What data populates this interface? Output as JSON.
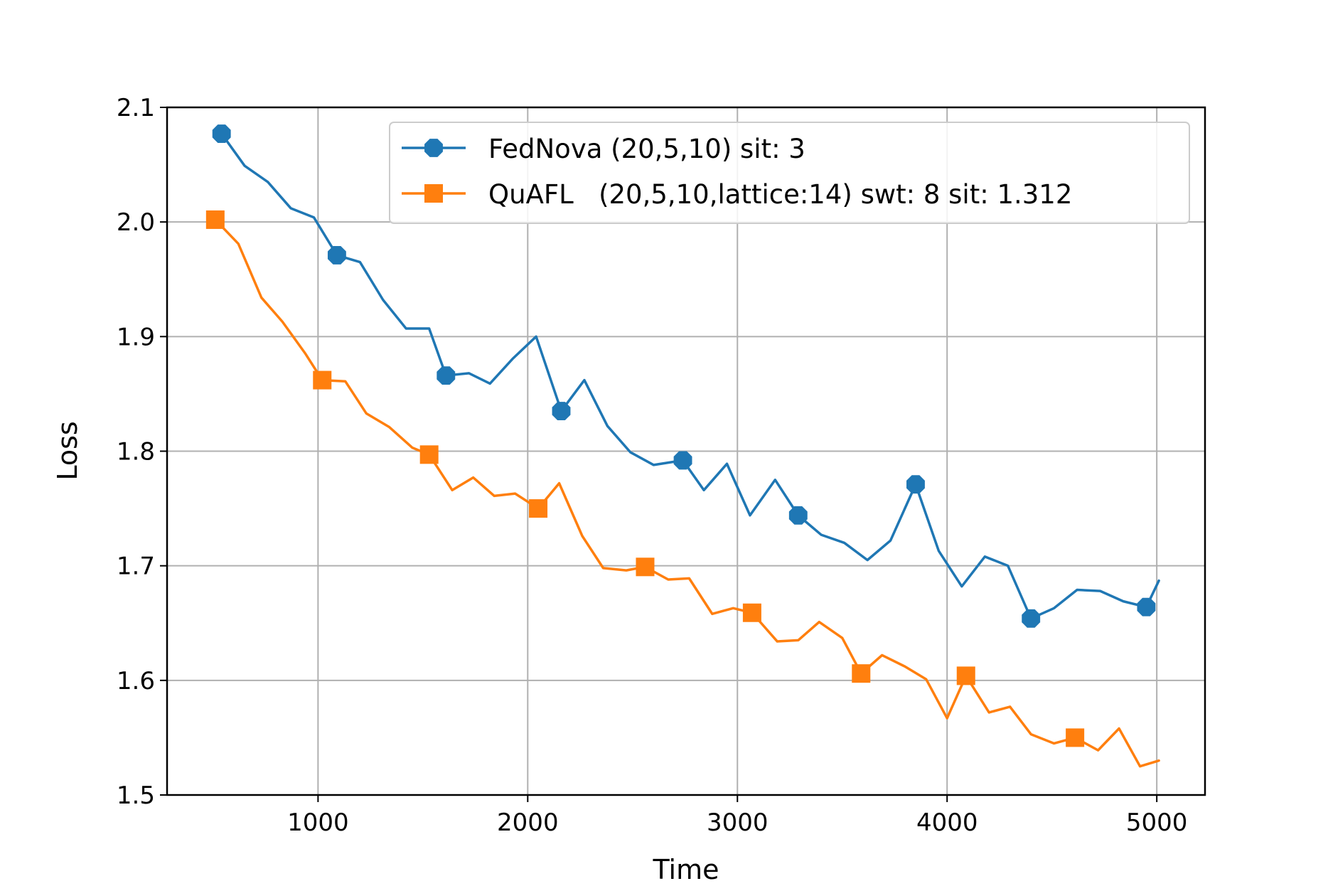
{
  "chart_data": {
    "type": "line",
    "title": "",
    "xlabel": "Time",
    "ylabel": "Loss",
    "xlim": [
      280,
      5230
    ],
    "ylim": [
      1.5,
      2.1
    ],
    "grid": true,
    "legend_position": "top-right",
    "xticks": [
      1000,
      2000,
      3000,
      4000,
      5000
    ],
    "xtick_labels": [
      "1000",
      "2000",
      "3000",
      "4000",
      "5000"
    ],
    "yticks": [
      1.5,
      1.6,
      1.7,
      1.8,
      1.9,
      2.0,
      2.1
    ],
    "ytick_labels": [
      "1.5",
      "1.6",
      "1.7",
      "1.8",
      "1.9",
      "2.0",
      "2.1"
    ],
    "series": [
      {
        "name": "FedNova (20,5,10) sit: 3",
        "color": "#1f77b4",
        "marker": "octagon",
        "x": [
          540,
          650,
          760,
          870,
          980,
          1090,
          1200,
          1310,
          1420,
          1530,
          1610,
          1720,
          1820,
          1930,
          2040,
          2160,
          2270,
          2380,
          2490,
          2600,
          2740,
          2840,
          2950,
          3060,
          3180,
          3290,
          3400,
          3510,
          3620,
          3730,
          3850,
          3960,
          4070,
          4180,
          4290,
          4400,
          4510,
          4620,
          4730,
          4840,
          4950,
          5010
        ],
        "y": [
          2.077,
          2.049,
          2.035,
          2.012,
          2.004,
          1.971,
          1.965,
          1.932,
          1.907,
          1.907,
          1.866,
          1.868,
          1.859,
          1.881,
          1.9,
          1.835,
          1.862,
          1.822,
          1.799,
          1.788,
          1.792,
          1.766,
          1.789,
          1.744,
          1.775,
          1.744,
          1.727,
          1.72,
          1.705,
          1.722,
          1.771,
          1.713,
          1.682,
          1.708,
          1.7,
          1.654,
          1.663,
          1.679,
          1.678,
          1.669,
          1.664,
          1.687
        ],
        "marker_indices": [
          0,
          5,
          10,
          15,
          20,
          25,
          30,
          35,
          40
        ]
      },
      {
        "name": "QuAFL   (20,5,10,lattice:14) swt: 8 sit: 1.312",
        "color": "#ff7f0e",
        "marker": "square",
        "x": [
          510,
          620,
          730,
          830,
          940,
          1020,
          1130,
          1230,
          1340,
          1450,
          1530,
          1640,
          1740,
          1840,
          1940,
          2050,
          2150,
          2260,
          2360,
          2470,
          2560,
          2670,
          2770,
          2880,
          2980,
          3070,
          3190,
          3290,
          3390,
          3500,
          3590,
          3690,
          3800,
          3900,
          4000,
          4090,
          4200,
          4300,
          4400,
          4510,
          4610,
          4720,
          4820,
          4920,
          5010
        ],
        "y": [
          2.002,
          1.981,
          1.934,
          1.913,
          1.885,
          1.862,
          1.861,
          1.833,
          1.821,
          1.803,
          1.797,
          1.766,
          1.777,
          1.761,
          1.763,
          1.75,
          1.772,
          1.726,
          1.698,
          1.696,
          1.699,
          1.688,
          1.689,
          1.658,
          1.663,
          1.659,
          1.634,
          1.635,
          1.651,
          1.637,
          1.606,
          1.622,
          1.612,
          1.601,
          1.567,
          1.604,
          1.572,
          1.577,
          1.553,
          1.545,
          1.55,
          1.539,
          1.558,
          1.525,
          1.53
        ],
        "marker_indices": [
          0,
          5,
          10,
          15,
          20,
          25,
          30,
          35,
          40
        ]
      }
    ]
  }
}
